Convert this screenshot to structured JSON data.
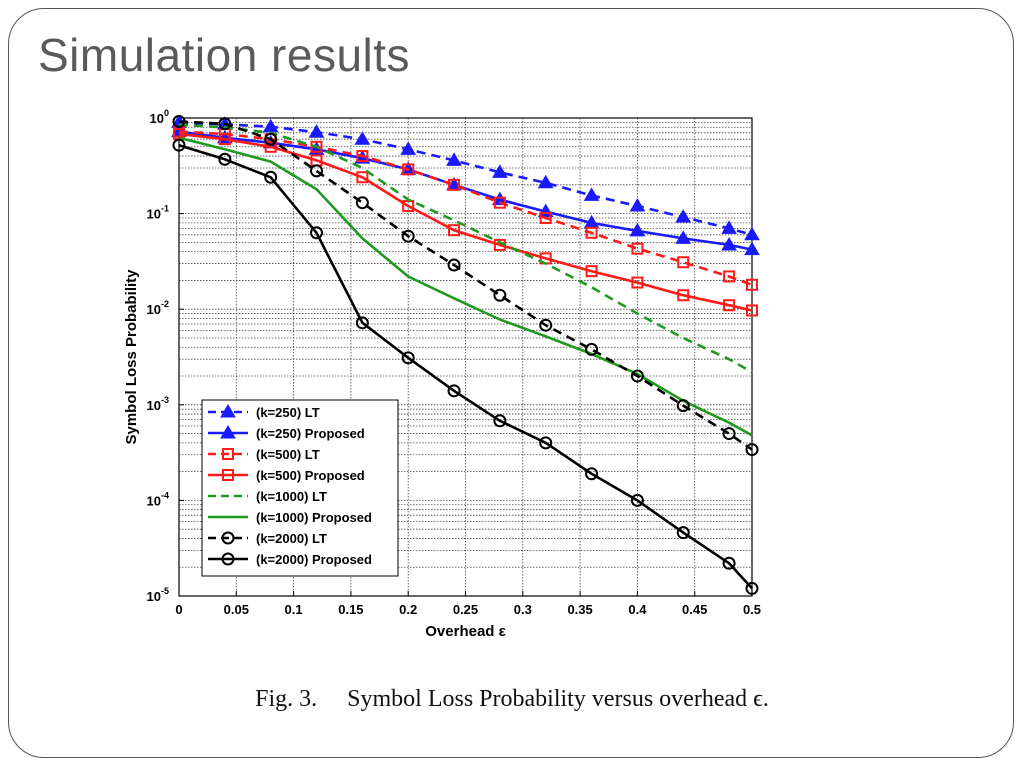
{
  "slide": {
    "title": "Simulation results"
  },
  "caption": {
    "fig_label": "Fig. 3.",
    "text": "Symbol Loss Probability versus overhead ϵ."
  },
  "chart_data": {
    "type": "line",
    "xlabel": "Overhead ε",
    "ylabel": "Symbol Loss Probability",
    "xlim": [
      0,
      0.5
    ],
    "ylim": [
      1e-05,
      1
    ],
    "yscale": "log",
    "grid": true,
    "legend_position": "bottom-left",
    "x_ticks": [
      "0",
      "0.05",
      "0.1",
      "0.15",
      "0.2",
      "0.25",
      "0.3",
      "0.35",
      "0.4",
      "0.45",
      "0.5"
    ],
    "y_ticks": [
      {
        "value": 1,
        "base": "10",
        "exp": "0"
      },
      {
        "value": 0.1,
        "base": "10",
        "exp": "-1"
      },
      {
        "value": 0.01,
        "base": "10",
        "exp": "-2"
      },
      {
        "value": 0.001,
        "base": "10",
        "exp": "-3"
      },
      {
        "value": 0.0001,
        "base": "10",
        "exp": "-4"
      },
      {
        "value": 1e-05,
        "base": "10",
        "exp": "-5"
      }
    ],
    "series": [
      {
        "name": "(k=250) LT",
        "color": "#1a1aff",
        "dash": true,
        "marker": "triangle",
        "x": [
          0,
          0.04,
          0.08,
          0.12,
          0.16,
          0.2,
          0.24,
          0.28,
          0.32,
          0.36,
          0.4,
          0.44,
          0.48,
          0.5
        ],
        "y": [
          0.9,
          0.86,
          0.81,
          0.71,
          0.6,
          0.47,
          0.36,
          0.27,
          0.21,
          0.155,
          0.12,
          0.092,
          0.07,
          0.06
        ]
      },
      {
        "name": "(k=250) Proposed",
        "color": "#1a1aff",
        "dash": false,
        "marker": "triangle",
        "x": [
          0,
          0.04,
          0.08,
          0.12,
          0.16,
          0.2,
          0.24,
          0.28,
          0.32,
          0.36,
          0.4,
          0.44,
          0.48,
          0.5
        ],
        "y": [
          0.72,
          0.62,
          0.55,
          0.47,
          0.38,
          0.29,
          0.2,
          0.14,
          0.105,
          0.08,
          0.066,
          0.055,
          0.047,
          0.042
        ]
      },
      {
        "name": "(k=500) LT",
        "color": "#ff1a1a",
        "dash": true,
        "marker": "square",
        "x": [
          0,
          0.04,
          0.08,
          0.12,
          0.16,
          0.2,
          0.24,
          0.28,
          0.32,
          0.36,
          0.4,
          0.44,
          0.48,
          0.5
        ],
        "y": [
          0.72,
          0.68,
          0.6,
          0.5,
          0.4,
          0.29,
          0.2,
          0.13,
          0.09,
          0.063,
          0.043,
          0.031,
          0.022,
          0.018
        ]
      },
      {
        "name": "(k=500) Proposed",
        "color": "#ff1a1a",
        "dash": false,
        "marker": "square",
        "x": [
          0,
          0.04,
          0.08,
          0.12,
          0.16,
          0.2,
          0.24,
          0.28,
          0.32,
          0.36,
          0.4,
          0.44,
          0.48,
          0.5
        ],
        "y": [
          0.68,
          0.6,
          0.5,
          0.36,
          0.24,
          0.12,
          0.067,
          0.047,
          0.034,
          0.025,
          0.019,
          0.014,
          0.011,
          0.0097
        ]
      },
      {
        "name": "(k=1000) LT",
        "color": "#1f9a1f",
        "dash": true,
        "marker": "none",
        "x": [
          0,
          0.04,
          0.08,
          0.12,
          0.16,
          0.2,
          0.24,
          0.28,
          0.32,
          0.36,
          0.4,
          0.44,
          0.48,
          0.5
        ],
        "y": [
          0.85,
          0.8,
          0.7,
          0.5,
          0.3,
          0.14,
          0.085,
          0.05,
          0.03,
          0.017,
          0.009,
          0.005,
          0.003,
          0.0022
        ]
      },
      {
        "name": "(k=1000) Proposed",
        "color": "#1f9a1f",
        "dash": false,
        "marker": "none",
        "x": [
          0,
          0.04,
          0.08,
          0.12,
          0.16,
          0.2,
          0.24,
          0.28,
          0.32,
          0.36,
          0.4,
          0.44,
          0.48,
          0.5
        ],
        "y": [
          0.62,
          0.47,
          0.35,
          0.18,
          0.055,
          0.022,
          0.013,
          0.0078,
          0.0052,
          0.0034,
          0.0021,
          0.0011,
          0.00065,
          0.00048
        ]
      },
      {
        "name": "(k=2000) LT",
        "color": "#000000",
        "dash": true,
        "marker": "circle",
        "x": [
          0,
          0.04,
          0.08,
          0.12,
          0.16,
          0.2,
          0.24,
          0.28,
          0.32,
          0.36,
          0.4,
          0.44,
          0.48,
          0.5
        ],
        "y": [
          0.92,
          0.87,
          0.6,
          0.28,
          0.13,
          0.058,
          0.029,
          0.014,
          0.0068,
          0.0038,
          0.002,
          0.00098,
          0.0005,
          0.00034
        ]
      },
      {
        "name": "(k=2000) Proposed",
        "color": "#000000",
        "dash": false,
        "marker": "circle",
        "x": [
          0,
          0.04,
          0.08,
          0.12,
          0.16,
          0.2,
          0.24,
          0.28,
          0.32,
          0.36,
          0.4,
          0.44,
          0.48,
          0.5
        ],
        "y": [
          0.52,
          0.37,
          0.24,
          0.063,
          0.0072,
          0.0031,
          0.0014,
          0.00068,
          0.0004,
          0.00019,
          0.0001,
          4.6e-05,
          2.2e-05,
          1.2e-05
        ]
      }
    ]
  }
}
